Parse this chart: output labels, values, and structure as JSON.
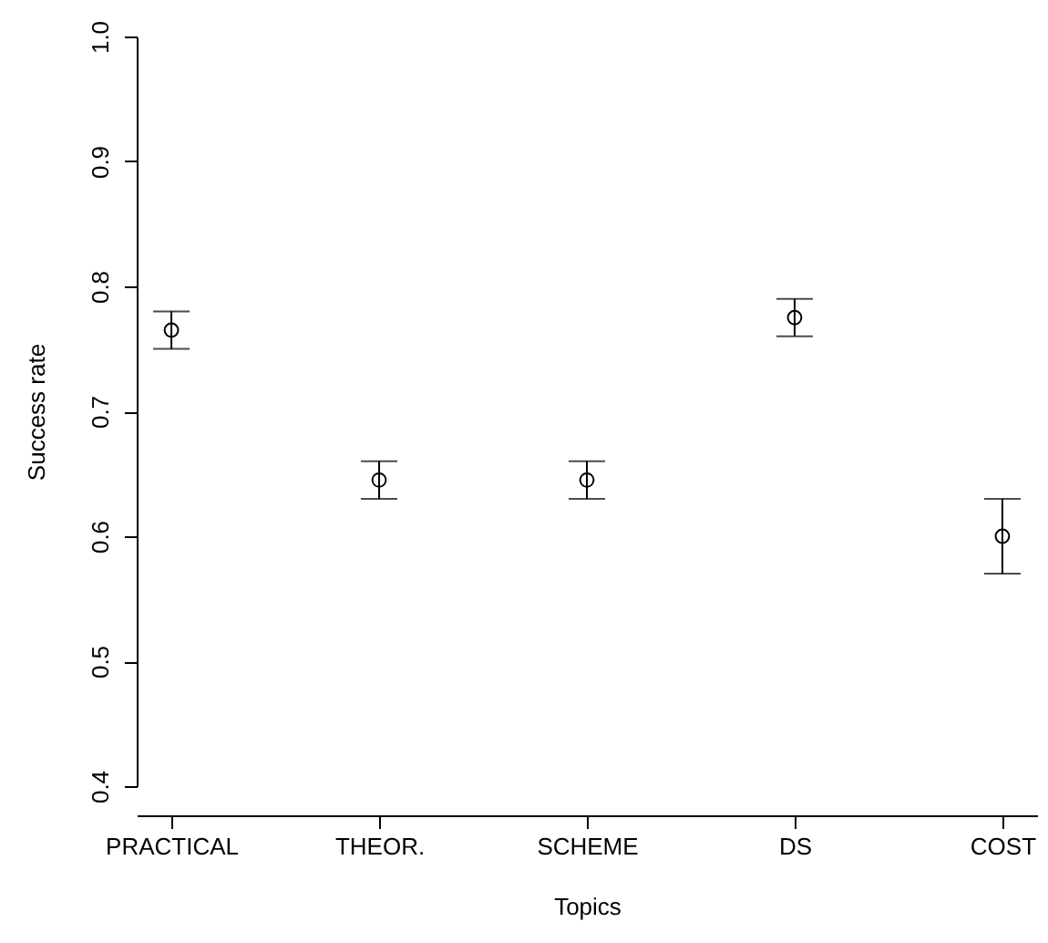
{
  "chart_data": {
    "type": "scatter",
    "xlabel": "Topics",
    "ylabel": "Success rate",
    "categories": [
      "PRACTICAL",
      "THEOR.",
      "SCHEME",
      "DS",
      "COST"
    ],
    "values": [
      0.765,
      0.645,
      0.645,
      0.775,
      0.6
    ],
    "errors": [
      0.015,
      0.015,
      0.015,
      0.015,
      0.03
    ],
    "color": "#000000",
    "marker": "circle",
    "ylim": [
      0.4,
      1.0
    ],
    "yticks": [
      0.4,
      0.5,
      0.6,
      0.7,
      0.8,
      0.9,
      {
        "value": 1.0,
        "label": "1.0"
      }
    ],
    "grid": false
  }
}
